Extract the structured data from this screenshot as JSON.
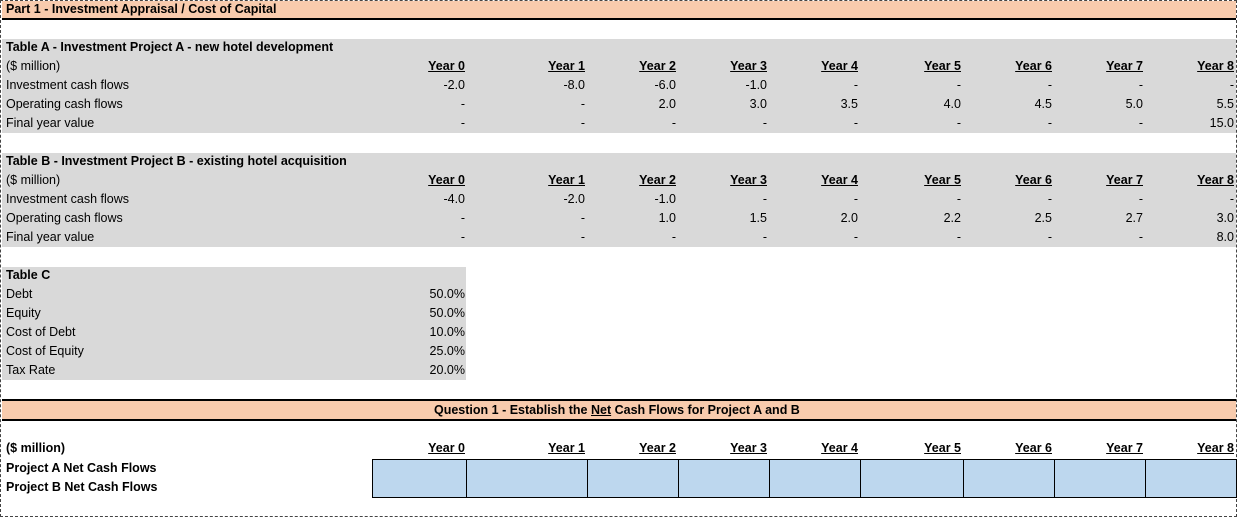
{
  "part1": {
    "title": "Part 1 - Investment Appraisal / Cost of Capital"
  },
  "years": [
    "Year 0",
    "Year 1",
    "Year 2",
    "Year 3",
    "Year 4",
    "Year 5",
    "Year 6",
    "Year 7",
    "Year 8"
  ],
  "tableA": {
    "title": "Table A - Investment Project A - new hotel development",
    "unit": "($ million)",
    "rows": [
      {
        "label": "Investment cash flows",
        "values": [
          "-2.0",
          "-8.0",
          "-6.0",
          "-1.0",
          "-",
          "-",
          "-",
          "-",
          "-"
        ]
      },
      {
        "label": "Operating cash flows",
        "values": [
          "-",
          "-",
          "2.0",
          "3.0",
          "3.5",
          "4.0",
          "4.5",
          "5.0",
          "5.5"
        ]
      },
      {
        "label": "Final year value",
        "values": [
          "-",
          "-",
          "-",
          "-",
          "-",
          "-",
          "-",
          "-",
          "15.0"
        ]
      }
    ]
  },
  "tableB": {
    "title": "Table B - Investment Project B - existing hotel acquisition",
    "unit": "($ million)",
    "rows": [
      {
        "label": "Investment cash flows",
        "values": [
          "-4.0",
          "-2.0",
          "-1.0",
          "-",
          "-",
          "-",
          "-",
          "-",
          "-"
        ]
      },
      {
        "label": "Operating cash flows",
        "values": [
          "-",
          "-",
          "1.0",
          "1.5",
          "2.0",
          "2.2",
          "2.5",
          "2.7",
          "3.0"
        ]
      },
      {
        "label": "Final year value",
        "values": [
          "-",
          "-",
          "-",
          "-",
          "-",
          "-",
          "-",
          "-",
          "8.0"
        ]
      }
    ]
  },
  "tableC": {
    "title": "Table C",
    "rows": [
      {
        "label": "Debt",
        "value": "50.0%"
      },
      {
        "label": "Equity",
        "value": "50.0%"
      },
      {
        "label": "Cost of Debt",
        "value": "10.0%"
      },
      {
        "label": "Cost of Equity",
        "value": "25.0%"
      },
      {
        "label": "Tax Rate",
        "value": "20.0%"
      }
    ]
  },
  "question1": {
    "title_pre": "Question 1 - Establish the ",
    "title_u": "Net",
    "title_post": " Cash Flows for Project A and B",
    "unit": "($ million)",
    "rows": [
      "Project A Net Cash Flows",
      "Project B Net Cash Flows"
    ]
  },
  "colors": {
    "peach": "#f8cbad",
    "grey": "#d9d9d9",
    "input": "#bdd7ee"
  }
}
